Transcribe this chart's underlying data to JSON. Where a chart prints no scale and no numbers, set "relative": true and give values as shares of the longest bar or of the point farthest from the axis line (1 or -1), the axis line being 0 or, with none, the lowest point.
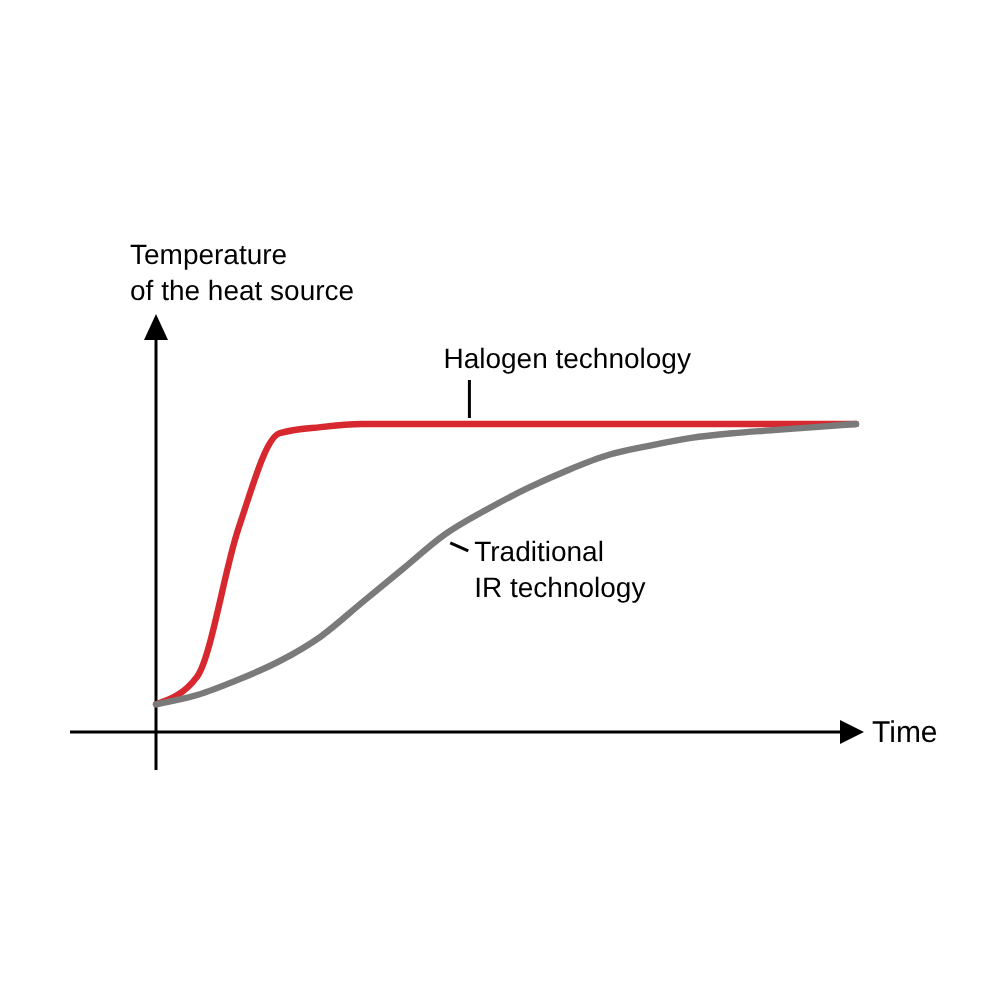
{
  "chart_data": {
    "type": "line",
    "relative": true,
    "xlabel": "Time",
    "ylabel": "Temperature\nof the heat source",
    "categories": [
      null,
      null,
      null,
      null,
      null,
      null,
      null,
      null,
      null,
      null,
      null,
      null,
      null,
      null,
      null,
      null,
      null,
      null
    ],
    "series": [
      {
        "name": "Halogen technology",
        "color": "#d7282f",
        "values": [
          0.09,
          0.18,
          0.66,
          0.97,
          0.99,
          1,
          1,
          1,
          1,
          1,
          1,
          1,
          1,
          1,
          1,
          1,
          1,
          1
        ]
      },
      {
        "name": "Traditional\nIR technology",
        "color": "#7a7a7a",
        "values": [
          0.09,
          0.12,
          0.17,
          0.23,
          0.31,
          0.42,
          0.53,
          0.64,
          0.72,
          0.79,
          0.85,
          0.9,
          0.93,
          0.955,
          0.97,
          0.98,
          0.99,
          1
        ]
      }
    ],
    "marker": "none",
    "line_style": "solid"
  }
}
